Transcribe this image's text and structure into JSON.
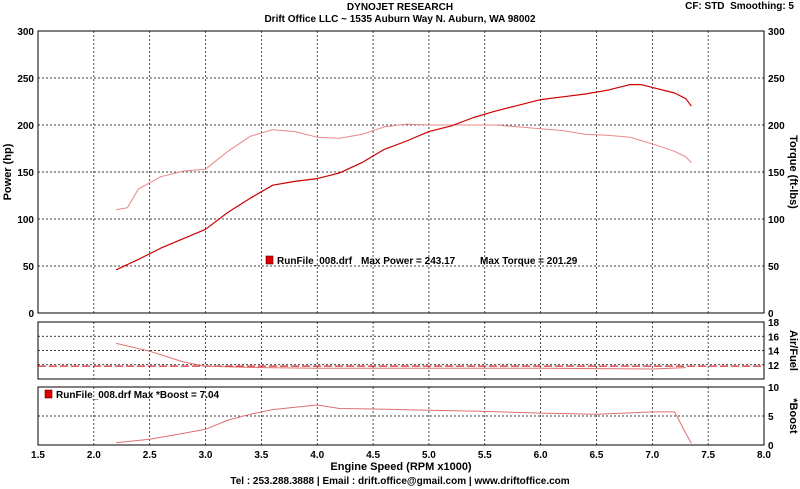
{
  "header": {
    "title": "DYNOJET RESEARCH",
    "subtitle": "Drift Office LLC ~ 1535 Auburn Way N. Auburn, WA 98002",
    "cf_label": "CF: STD",
    "smoothing_label": "Smoothing: 5"
  },
  "footer": {
    "contact": "Tel : 253.288.3888 | Email : drift.office@gmail.com | www.driftoffice.com"
  },
  "colors": {
    "power": "#cc0000",
    "torque": "#e88888",
    "afr": "#e07070",
    "afr_ref": "#cc0000",
    "boost": "#e07070",
    "grid": "#000000",
    "legend_swatch": "#dd0000"
  },
  "chart_data": [
    {
      "type": "line",
      "xlabel": "Engine Speed (RPM x1000)",
      "ylabel": "Power (hp)",
      "y2label": "Torque (ft-lbs)",
      "xlim": [
        1.5,
        8.0
      ],
      "ylim": [
        0,
        300
      ],
      "y2lim": [
        0,
        300
      ],
      "xticks": [
        "1.5",
        "2.0",
        "2.5",
        "3.0",
        "3.5",
        "4.0",
        "4.5",
        "5.0",
        "5.5",
        "6.0",
        "6.5",
        "7.0",
        "7.5",
        "8.0"
      ],
      "yticks": [
        "0",
        "50",
        "100",
        "150",
        "200",
        "250",
        "300"
      ],
      "grid": true,
      "legend": {
        "file": "RunFile_008.drf",
        "max_power_text": "Max Power = 243.17",
        "max_torque_text": "Max Torque = 201.29"
      },
      "series": [
        {
          "key": "power",
          "x": [
            2.2,
            2.4,
            2.6,
            2.8,
            3.0,
            3.2,
            3.4,
            3.6,
            3.8,
            4.0,
            4.2,
            4.4,
            4.6,
            4.8,
            5.0,
            5.2,
            5.4,
            5.6,
            5.8,
            6.0,
            6.2,
            6.4,
            6.6,
            6.8,
            6.9,
            7.0,
            7.2,
            7.3,
            7.35
          ],
          "values": [
            46,
            57,
            69,
            79,
            89,
            107,
            122,
            136,
            140,
            143,
            149,
            160,
            174,
            183,
            193,
            199,
            208,
            215,
            221,
            227,
            230,
            233,
            237,
            243,
            243,
            240,
            234,
            228,
            220
          ]
        },
        {
          "key": "torque",
          "x": [
            2.2,
            2.3,
            2.4,
            2.6,
            2.8,
            3.0,
            3.2,
            3.4,
            3.6,
            3.8,
            4.0,
            4.2,
            4.4,
            4.6,
            4.8,
            5.0,
            5.2,
            5.4,
            5.6,
            5.8,
            6.0,
            6.2,
            6.4,
            6.6,
            6.8,
            7.0,
            7.2,
            7.3,
            7.35
          ],
          "values": [
            110,
            112,
            132,
            145,
            151,
            153,
            172,
            188,
            195,
            193,
            187,
            186,
            190,
            198,
            201,
            200,
            200,
            200,
            200,
            198,
            196,
            194,
            190,
            189,
            187,
            180,
            172,
            166,
            160
          ]
        }
      ]
    },
    {
      "type": "line",
      "ylabel": "Air/Fuel",
      "xlim": [
        1.5,
        8.0
      ],
      "ylim": [
        10,
        18
      ],
      "yticks": [
        "10",
        "12",
        "14",
        "16",
        "18"
      ],
      "reference_line": 11.8,
      "series": [
        {
          "key": "afr",
          "x": [
            2.2,
            2.5,
            2.8,
            3.0,
            3.5,
            4.0,
            5.0,
            6.0,
            7.0,
            7.3
          ],
          "values": [
            15.0,
            13.9,
            12.4,
            11.8,
            11.6,
            11.5,
            11.5,
            11.5,
            11.4,
            11.6
          ]
        }
      ]
    },
    {
      "type": "line",
      "ylabel": "*Boost",
      "xlim": [
        1.5,
        8.0
      ],
      "ylim": [
        0,
        10
      ],
      "yticks": [
        "0",
        "5",
        "10"
      ],
      "legend": {
        "text": "RunFile_008.drf Max *Boost = 7.04"
      },
      "series": [
        {
          "key": "boost",
          "x": [
            2.2,
            2.5,
            2.8,
            3.0,
            3.2,
            3.4,
            3.6,
            3.8,
            4.0,
            4.2,
            4.5,
            5.0,
            5.5,
            6.0,
            6.5,
            7.0,
            7.2,
            7.3,
            7.35
          ],
          "values": [
            0.4,
            1.0,
            2.0,
            2.7,
            4.3,
            5.3,
            6.1,
            6.5,
            6.9,
            6.3,
            6.2,
            6.0,
            5.8,
            5.5,
            5.3,
            5.7,
            5.7,
            2.0,
            0.3
          ]
        }
      ]
    }
  ]
}
